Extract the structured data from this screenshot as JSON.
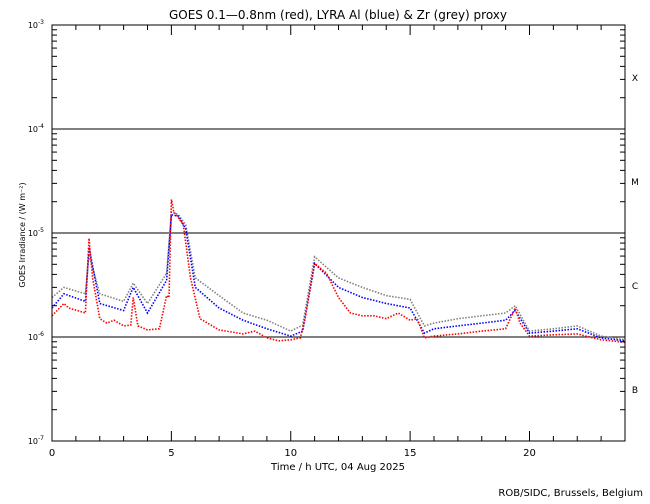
{
  "chart_data": {
    "type": "line",
    "title": "GOES 0.1—0.8nm (red), LYRA Al (blue) & Zr (grey) proxy",
    "xlabel": "Time / h UTC, 04 Aug 2025",
    "ylabel": "GOES Irradiance / (W m⁻²)",
    "xlim": [
      0,
      24
    ],
    "ylim": [
      1e-07,
      0.001
    ],
    "yscale": "log",
    "x_ticks": [
      "0",
      "5",
      "10",
      "15",
      "20"
    ],
    "y_ticks": [
      {
        "base": "10",
        "exp": "-3"
      },
      {
        "base": "10",
        "exp": "-4"
      },
      {
        "base": "10",
        "exp": "-5"
      },
      {
        "base": "10",
        "exp": "-6"
      },
      {
        "base": "10",
        "exp": "-7"
      }
    ],
    "flare_classes": [
      "X",
      "M",
      "C",
      "B"
    ],
    "grid": "horizontal lines at 1e-4, 1e-5, 1e-6",
    "credit": "ROB/SIDC, Brussels, Belgium",
    "series": [
      {
        "name": "GOES 0.1-0.8nm",
        "color": "#ff0000",
        "x": [
          0,
          0.5,
          0.7,
          1.4,
          1.55,
          1.7,
          2.0,
          2.3,
          2.6,
          3.0,
          3.3,
          3.4,
          3.6,
          4.0,
          4.5,
          4.8,
          4.9,
          5.0,
          5.1,
          5.3,
          5.5,
          5.8,
          6.2,
          7,
          8,
          8.5,
          9,
          9.5,
          10,
          10.4,
          10.6,
          11,
          11.5,
          12,
          12.5,
          13,
          13.5,
          14,
          14.5,
          15,
          15.3,
          15.6,
          16,
          17,
          18,
          19,
          19.4,
          19.6,
          20,
          21,
          22,
          23,
          24
        ],
        "y": [
          1.6e-06,
          2.1e-06,
          1.9e-06,
          1.7e-06,
          8.9e-06,
          3.7e-06,
          1.5e-06,
          1.36e-06,
          1.45e-06,
          1.28e-06,
          1.3e-06,
          2.4e-06,
          1.28e-06,
          1.17e-06,
          1.2e-06,
          2.5e-06,
          2.4e-06,
          2.1e-05,
          1.6e-05,
          1.4e-05,
          1.2e-05,
          3.7e-06,
          1.5e-06,
          1.17e-06,
          1.07e-06,
          1.14e-06,
          9.8e-07,
          9.2e-07,
          9.4e-07,
          9.8e-07,
          1.5e-06,
          5.1e-06,
          4.1e-06,
          2.4e-06,
          1.7e-06,
          1.6e-06,
          1.6e-06,
          1.5e-06,
          1.7e-06,
          1.45e-06,
          1.5e-06,
          9.8e-07,
          1.02e-06,
          1.07e-06,
          1.14e-06,
          1.2e-06,
          1.9e-06,
          1.36e-06,
          1.02e-06,
          1.05e-06,
          1.07e-06,
          9.4e-07,
          8.9e-07
        ]
      },
      {
        "name": "LYRA Al proxy",
        "color": "#0000ff",
        "x": [
          0,
          0.5,
          1.4,
          1.55,
          2,
          3,
          3.4,
          4,
          4.8,
          5.0,
          5.3,
          5.6,
          6,
          7,
          8,
          9,
          10,
          10.5,
          11,
          12,
          13,
          14,
          15,
          15.6,
          16,
          17,
          18,
          19,
          19.4,
          20,
          21,
          22,
          23,
          24
        ],
        "y": [
          1.9e-06,
          2.6e-06,
          2.2e-06,
          7.3e-06,
          2.1e-06,
          1.8e-06,
          3e-06,
          1.7e-06,
          3.5e-06,
          1.5e-05,
          1.45e-05,
          1.1e-05,
          3e-06,
          1.9e-06,
          1.45e-06,
          1.2e-06,
          1.02e-06,
          1.14e-06,
          5.1e-06,
          3e-06,
          2.4e-06,
          2.1e-06,
          1.9e-06,
          1.09e-06,
          1.2e-06,
          1.28e-06,
          1.36e-06,
          1.45e-06,
          1.8e-06,
          1.09e-06,
          1.14e-06,
          1.2e-06,
          9.8e-07,
          9.2e-07
        ]
      },
      {
        "name": "LYRA Zr proxy",
        "color": "#808080",
        "x": [
          0,
          0.5,
          1.4,
          1.55,
          2,
          3,
          3.4,
          4,
          4.8,
          5.0,
          5.3,
          5.6,
          6,
          7,
          8,
          9,
          10,
          10.5,
          11,
          12,
          13,
          14,
          15,
          15.6,
          16,
          17,
          18,
          19,
          19.4,
          20,
          21,
          22,
          23,
          24
        ],
        "y": [
          2.4e-06,
          3e-06,
          2.6e-06,
          6.2e-06,
          2.6e-06,
          2.2e-06,
          3.3e-06,
          2.1e-06,
          4.1e-06,
          1.6e-05,
          1.5e-05,
          1.2e-05,
          3.7e-06,
          2.5e-06,
          1.7e-06,
          1.45e-06,
          1.14e-06,
          1.3e-06,
          5.9e-06,
          3.7e-06,
          3e-06,
          2.5e-06,
          2.3e-06,
          1.28e-06,
          1.36e-06,
          1.5e-06,
          1.6e-06,
          1.7e-06,
          2e-06,
          1.14e-06,
          1.2e-06,
          1.28e-06,
          1.02e-06,
          9.4e-07
        ]
      }
    ]
  }
}
